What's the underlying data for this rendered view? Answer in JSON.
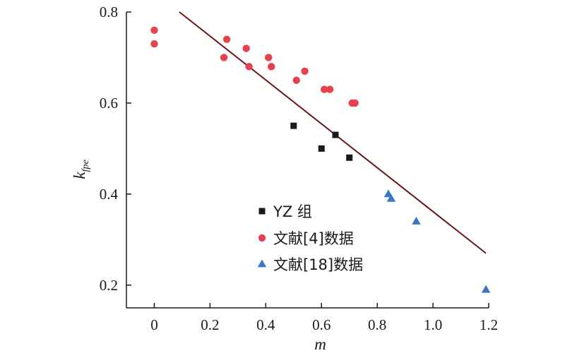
{
  "chart_data": {
    "type": "scatter",
    "xlabel": "m",
    "ylabel_main": "k",
    "ylabel_sub": "fpe",
    "xlim": [
      -0.1,
      1.2
    ],
    "ylim": [
      0.15,
      0.8
    ],
    "xticks": [
      0,
      0.2,
      0.4,
      0.6,
      0.8,
      1.0,
      1.2
    ],
    "xtick_labels": [
      "0",
      "0.2",
      "0.4",
      "0.6",
      "0.8",
      "1.0",
      "1.2"
    ],
    "yticks": [
      0.2,
      0.4,
      0.6,
      0.8
    ],
    "ytick_labels": [
      "0.2",
      "0.4",
      "0.6",
      "0.8"
    ],
    "grid": false,
    "legend_position": "lower-center",
    "series": [
      {
        "name": "YZ 组",
        "marker": "square",
        "color": "#1a1a1a",
        "x": [
          0.5,
          0.6,
          0.65,
          0.7
        ],
        "y": [
          0.55,
          0.5,
          0.53,
          0.48
        ]
      },
      {
        "name": "文献[4]数据",
        "marker": "circle",
        "color": "#e8414e",
        "x": [
          0.0,
          0.0,
          0.25,
          0.26,
          0.33,
          0.34,
          0.41,
          0.42,
          0.51,
          0.54,
          0.61,
          0.63,
          0.71,
          0.72
        ],
        "y": [
          0.76,
          0.73,
          0.7,
          0.74,
          0.72,
          0.68,
          0.7,
          0.68,
          0.65,
          0.67,
          0.63,
          0.63,
          0.6,
          0.6
        ]
      },
      {
        "name": "文献[18]数据",
        "marker": "triangle",
        "color": "#3a78c3",
        "x": [
          0.84,
          0.85,
          0.94,
          1.19
        ],
        "y": [
          0.4,
          0.39,
          0.34,
          0.19
        ]
      }
    ],
    "fit_line": {
      "color": "#6b1414",
      "x": [
        0.09,
        1.19
      ],
      "y": [
        0.8,
        0.27
      ]
    }
  }
}
